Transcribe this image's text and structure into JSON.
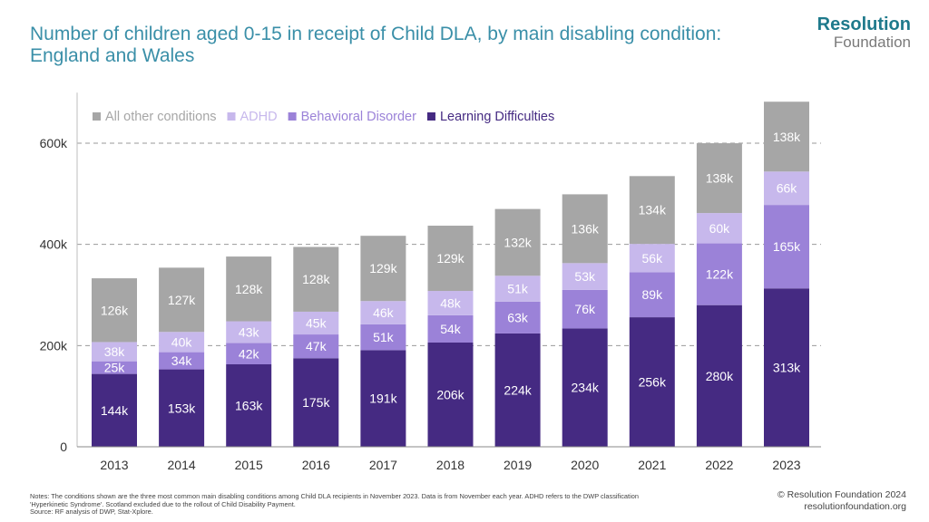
{
  "title": "Number of children aged 0-15 in receipt of Child DLA, by main disabling condition: England and Wales",
  "logo": {
    "line1": "Resolution",
    "line2": "Foundation"
  },
  "notes": [
    "Notes: The conditions shown are the three most common main disabling conditions among Child DLA recipients in November 2023. Data is from November each year. ADHD refers to the DWP classification",
    "'Hyperkinetic Syndrome'. Scotland excluded due to the rollout of Child Disability Payment.",
    "Source: RF analysis of DWP, Stat-Xplore."
  ],
  "copyright": {
    "line1": "© Resolution Foundation 2024",
    "line2": "resolutionfoundation.org"
  },
  "chart_data": {
    "type": "bar",
    "stacked": true,
    "title": "Number of children aged 0-15 in receipt of Child DLA, by main disabling condition: England and Wales",
    "categories": [
      "2013",
      "2014",
      "2015",
      "2016",
      "2017",
      "2018",
      "2019",
      "2020",
      "2021",
      "2022",
      "2023"
    ],
    "series": [
      {
        "name": "Learning Difficulties",
        "color": "#452a82",
        "values": [
          144,
          153,
          163,
          175,
          191,
          206,
          224,
          234,
          256,
          280,
          313
        ]
      },
      {
        "name": "Behavioral Disorder",
        "color": "#9b82d8",
        "values": [
          25,
          34,
          42,
          47,
          51,
          54,
          63,
          76,
          89,
          122,
          165
        ]
      },
      {
        "name": "ADHD",
        "color": "#c7b8ec",
        "values": [
          38,
          40,
          43,
          45,
          46,
          48,
          51,
          53,
          56,
          60,
          66
        ]
      },
      {
        "name": "All other conditions",
        "color": "#a6a6a6",
        "values": [
          126,
          127,
          128,
          128,
          129,
          129,
          132,
          136,
          134,
          138,
          138
        ]
      }
    ],
    "legend_order": [
      "All other conditions",
      "ADHD",
      "Behavioral Disorder",
      "Learning Difficulties"
    ],
    "value_suffix": "k",
    "yticks": [
      0,
      200,
      400,
      600
    ],
    "ytick_labels": [
      "0",
      "200k",
      "400k",
      "600k"
    ],
    "ylim": [
      0,
      700
    ],
    "xlabel": "",
    "ylabel": "",
    "legend_position": "top-left"
  }
}
